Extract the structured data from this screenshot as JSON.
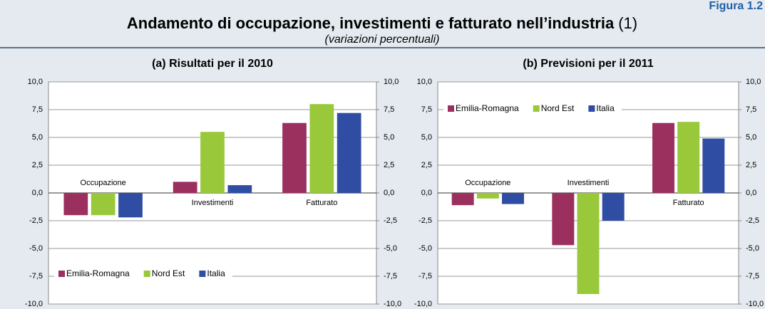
{
  "header": {
    "figure": "Figura 1.2",
    "title": "Andamento di occupazione, investimenti e fatturato nell’industria",
    "title_note": "(1)",
    "subtitle": "(variazioni percentuali)"
  },
  "chart_data": [
    {
      "type": "bar",
      "title": "(a) Risultati per il 2010",
      "categories": [
        "Occupazione",
        "Investimenti",
        "Fatturato"
      ],
      "series": [
        {
          "name": "Emilia-Romagna",
          "color": "#9b2f5e",
          "values": [
            -2.0,
            1.0,
            6.3
          ]
        },
        {
          "name": "Nord Est",
          "color": "#99c93a",
          "values": [
            -2.0,
            5.5,
            8.0
          ]
        },
        {
          "name": "Italia",
          "color": "#2e4da3",
          "values": [
            -2.2,
            0.7,
            7.2
          ]
        }
      ],
      "ylim": [
        -10,
        10
      ],
      "yticks": [
        {
          "value": -10,
          "label": "-10,0"
        },
        {
          "value": -7.5,
          "label": "-7,5"
        },
        {
          "value": -5,
          "label": "-5,0"
        },
        {
          "value": -2.5,
          "label": "-2,5"
        },
        {
          "value": 0,
          "label": "0,0"
        },
        {
          "value": 2.5,
          "label": "2,5"
        },
        {
          "value": 5,
          "label": "5,0"
        },
        {
          "value": 7.5,
          "label": "7,5"
        },
        {
          "value": 10,
          "label": "10,0"
        }
      ],
      "y2lim": [
        -10,
        10
      ],
      "y2ticks": [
        {
          "value": -10,
          "label": "-10,0"
        },
        {
          "value": -7.5,
          "label": "-7,5"
        },
        {
          "value": -5,
          "label": "-5,0"
        },
        {
          "value": -2.5,
          "label": "-2,5"
        },
        {
          "value": 0,
          "label": "0,0"
        },
        {
          "value": 2.5,
          "label": "2,5"
        },
        {
          "value": 5,
          "label": "5,0"
        },
        {
          "value": 7.5,
          "label": "7,5"
        },
        {
          "value": 10,
          "label": "10,0"
        }
      ],
      "grid": true,
      "legend": "lower left"
    },
    {
      "type": "bar",
      "title": "(b) Previsioni per il 2011",
      "categories": [
        "Occupazione",
        "Investimenti",
        "Fatturato"
      ],
      "series": [
        {
          "name": "Emilia-Romagna",
          "color": "#9b2f5e",
          "values": [
            -1.1,
            -4.7,
            6.3
          ]
        },
        {
          "name": "Nord Est",
          "color": "#99c93a",
          "values": [
            -0.5,
            -9.1,
            6.4
          ]
        },
        {
          "name": "Italia",
          "color": "#2e4da3",
          "values": [
            -1.0,
            -2.5,
            4.9
          ]
        }
      ],
      "ylim": [
        -10,
        10
      ],
      "yticks": [
        {
          "value": -10,
          "label": "-10,0"
        },
        {
          "value": -7.5,
          "label": "-7,5"
        },
        {
          "value": -5,
          "label": "-5,0"
        },
        {
          "value": -2.5,
          "label": "-2,5"
        },
        {
          "value": 0,
          "label": "0,0"
        },
        {
          "value": 2.5,
          "label": "2,5"
        },
        {
          "value": 5,
          "label": "5,0"
        },
        {
          "value": 7.5,
          "label": "7,5"
        },
        {
          "value": 10,
          "label": "10,0"
        }
      ],
      "y2lim": [
        -10,
        10
      ],
      "y2ticks": [
        {
          "value": -10,
          "label": "-10,0"
        },
        {
          "value": -7.5,
          "label": "-7,5"
        },
        {
          "value": -5,
          "label": "-5,0"
        },
        {
          "value": -2.5,
          "label": "-2,5"
        },
        {
          "value": 0,
          "label": "0,0"
        },
        {
          "value": 2.5,
          "label": "2,5"
        },
        {
          "value": 5,
          "label": "5,0"
        },
        {
          "value": 7.5,
          "label": "7,5"
        },
        {
          "value": 10,
          "label": "10,0"
        }
      ],
      "grid": true,
      "legend": "upper left"
    }
  ]
}
